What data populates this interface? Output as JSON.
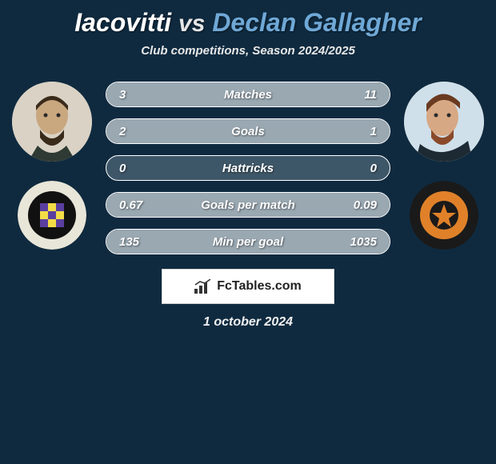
{
  "title": {
    "player1": "Iacovitti",
    "vs": "vs",
    "player2": "Declan Gallagher",
    "player1_color": "#ffffff",
    "player2_color": "#6fa8d6"
  },
  "subtitle": "Club competitions, Season 2024/2025",
  "background_color": "#0f2a3f",
  "bar_track_color": "#3e5768",
  "bar_border_color": "#ffffff",
  "bar_fill_left_color": "#9aa8b2",
  "bar_fill_right_color": "#9aa8b2",
  "bars": [
    {
      "label": "Matches",
      "left_value": "3",
      "right_value": "11",
      "left_pct": 21,
      "right_pct": 79
    },
    {
      "label": "Goals",
      "left_value": "2",
      "right_value": "1",
      "left_pct": 67,
      "right_pct": 33
    },
    {
      "label": "Hattricks",
      "left_value": "0",
      "right_value": "0",
      "left_pct": 0,
      "right_pct": 0
    },
    {
      "label": "Goals per match",
      "left_value": "0.67",
      "right_value": "0.09",
      "left_pct": 88,
      "right_pct": 12
    },
    {
      "label": "Min per goal",
      "left_value": "135",
      "right_value": "1035",
      "left_pct": 12,
      "right_pct": 88
    }
  ],
  "attribution": "FcTables.com",
  "date": "1 october 2024",
  "avatar1": {
    "bg": "#d9d2c5"
  },
  "avatar2": {
    "bg": "#cfe0ea"
  },
  "club1": {
    "ring_bg": "#e8e6d8",
    "ring_text": "#2a2a2a",
    "inner_bg": "#f3dd46"
  },
  "club2": {
    "ring_bg": "#1a1a1a",
    "inner_bg": "#e0812a"
  }
}
